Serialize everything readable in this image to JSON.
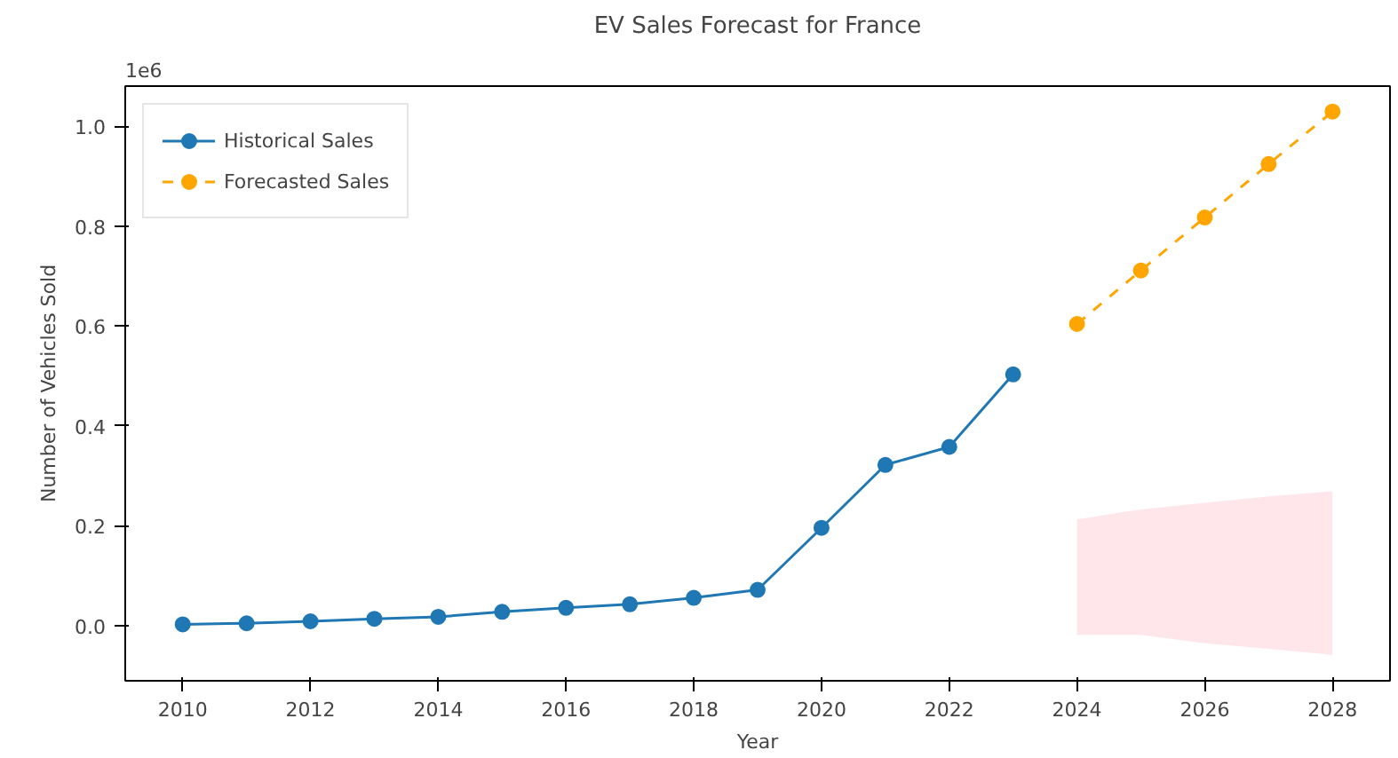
{
  "chart_data": {
    "type": "line",
    "title": "EV Sales Forecast for France",
    "xlabel": "Year",
    "ylabel": "Number of Vehicles Sold",
    "annotations": [
      "1e6"
    ],
    "xlim": [
      2009.1,
      2028.9
    ],
    "xticks": [
      2010,
      2012,
      2014,
      2016,
      2018,
      2020,
      2022,
      2024,
      2026,
      2028
    ],
    "ylim": [
      -0.11,
      1.08
    ],
    "yticks": [
      {
        "value": 0,
        "label": "0.0"
      },
      0.2,
      0.4,
      0.6,
      0.8,
      {
        "value": 1,
        "label": "1.0"
      }
    ],
    "grid": false,
    "legend": "top left",
    "marker": "circle",
    "series": [
      {
        "name": "Historical Sales",
        "color": "#1f77b4",
        "line_style": "solid",
        "x": [
          2010,
          2011,
          2012,
          2013,
          2014,
          2015,
          2016,
          2017,
          2018,
          2019,
          2020,
          2021,
          2022,
          2023
        ],
        "values": [
          0.003,
          0.005,
          0.009,
          0.014,
          0.018,
          0.028,
          0.036,
          0.043,
          0.056,
          0.072,
          0.196,
          0.322,
          0.358,
          0.503
        ]
      },
      {
        "name": "Forecasted Sales",
        "color": "#ffa500",
        "line_style": "dashed",
        "x": [
          2024,
          2025,
          2026,
          2027,
          2028
        ],
        "values": [
          0.604,
          0.711,
          0.817,
          0.924,
          1.029
        ],
        "lower": [
          -0.018,
          -0.018,
          -0.035,
          -0.046,
          -0.058
        ],
        "upper": [
          0.213,
          0.233,
          0.246,
          0.259,
          0.269
        ]
      }
    ]
  }
}
